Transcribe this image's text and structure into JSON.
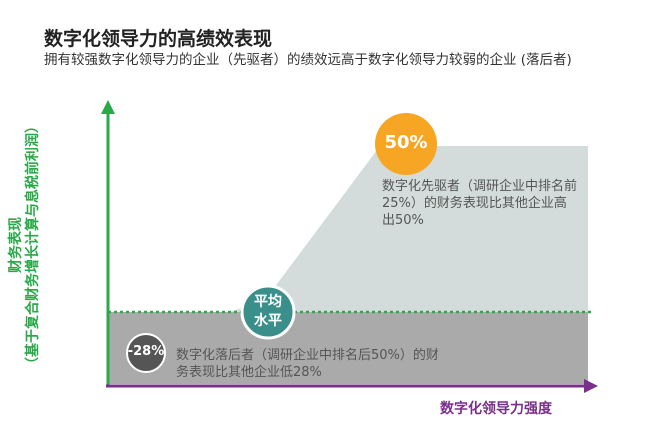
{
  "header": {
    "title": "数字化领导力的高绩效表现",
    "subtitle": "拥有较强数字化领导力的企业（先驱者）的绩效远高于数字化领导力较弱的企业 (落后者)"
  },
  "colors": {
    "laggard_area": "#aaaaaa",
    "pioneer_area": "#d3dcda",
    "y_axis": "#2aa84a",
    "x_axis": "#7a2f8a",
    "pioneer_bubble": "#f6a623",
    "average_bubble": "#3b8f8a",
    "laggard_bubble": "#555555"
  },
  "chart_data": {
    "type": "area",
    "title": "数字化领导力的高绩效表现",
    "xlabel": "数字化领导力强度",
    "ylabel": [
      "财务表现",
      "（基于复合财务增长计算与息税前利润）"
    ],
    "average_label": "平均水平",
    "grid": false,
    "series": [
      {
        "value_label": "-28%",
        "value": -28,
        "annotation": "数字化落后者（调研企业中排名后50%）的财务表现比其他企业低28%"
      },
      {
        "value_label": "50%",
        "value": 50,
        "annotation": "数字化先驱者（调研企业中排名前25%）的财务表现比其他企业高出50%"
      }
    ]
  }
}
